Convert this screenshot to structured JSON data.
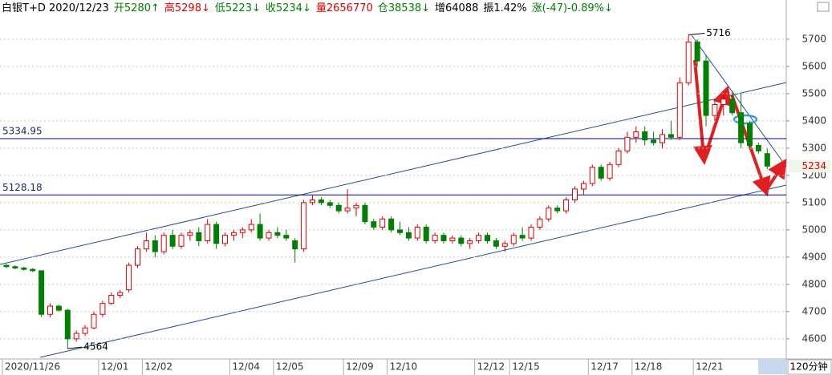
{
  "header": {
    "items": [
      {
        "text": "白银T+D 2020/12/23",
        "color": "#000000"
      },
      {
        "text": "开5280↑",
        "color": "#008000"
      },
      {
        "text": "高5298↓",
        "color": "#e00000"
      },
      {
        "text": "低5223↓",
        "color": "#008000"
      },
      {
        "text": "收5234↓",
        "color": "#008000"
      },
      {
        "text": "量2656770",
        "color": "#e00000"
      },
      {
        "text": "仓38538↓",
        "color": "#008000"
      },
      {
        "text": "增64088",
        "color": "#000000"
      },
      {
        "text": "振1.42%",
        "color": "#000000"
      },
      {
        "text": "涨(-47)-0.89%↓",
        "color": "#008000"
      }
    ]
  },
  "chart_data": {
    "type": "candlestick",
    "period": "120分钟",
    "up_color": "#e00000",
    "down_color": "#008000",
    "ylim": [
      4526,
      5791
    ],
    "yticks": [
      4600,
      4700,
      4800,
      4900,
      5000,
      5100,
      5200,
      5300,
      5400,
      5500,
      5600,
      5700
    ],
    "grid": true,
    "xticks": [
      {
        "value": 0,
        "label": "2020/11/26"
      },
      {
        "value": 11,
        "label": "12/01"
      },
      {
        "value": 16,
        "label": "12/02"
      },
      {
        "value": 26,
        "label": "12/04"
      },
      {
        "value": 31,
        "label": "12/05"
      },
      {
        "value": 39,
        "label": "12/09"
      },
      {
        "value": 44,
        "label": "12/10"
      },
      {
        "value": 54,
        "label": "12/12"
      },
      {
        "value": 58,
        "label": "12/15"
      },
      {
        "value": 67,
        "label": "12/17"
      },
      {
        "value": 72,
        "label": "12/18"
      },
      {
        "value": 79,
        "label": "12/21"
      }
    ],
    "levels": [
      5334.95,
      5128.18
    ],
    "level_color": "#000080",
    "max_index": 78,
    "min_index": 7,
    "candles": [
      {
        "open": 4870,
        "high": 4875,
        "low": 4860,
        "close": 4865
      },
      {
        "open": 4865,
        "high": 4870,
        "low": 4855,
        "close": 4860
      },
      {
        "open": 4860,
        "high": 4865,
        "low": 4850,
        "close": 4855
      },
      {
        "open": 4855,
        "high": 4860,
        "low": 4845,
        "close": 4850
      },
      {
        "open": 4850,
        "high": 4850,
        "low": 4680,
        "close": 4690
      },
      {
        "open": 4690,
        "high": 4730,
        "low": 4680,
        "close": 4720
      },
      {
        "open": 4720,
        "high": 4725,
        "low": 4700,
        "close": 4705
      },
      {
        "open": 4705,
        "high": 4710,
        "low": 4564,
        "close": 4600
      },
      {
        "open": 4600,
        "high": 4630,
        "low": 4590,
        "close": 4620
      },
      {
        "open": 4620,
        "high": 4650,
        "low": 4610,
        "close": 4640
      },
      {
        "open": 4640,
        "high": 4700,
        "low": 4635,
        "close": 4690
      },
      {
        "open": 4690,
        "high": 4740,
        "low": 4680,
        "close": 4730
      },
      {
        "open": 4730,
        "high": 4770,
        "low": 4725,
        "close": 4760
      },
      {
        "open": 4760,
        "high": 4780,
        "low": 4750,
        "close": 4770
      },
      {
        "open": 4780,
        "high": 4880,
        "low": 4770,
        "close": 4870
      },
      {
        "open": 4870,
        "high": 4940,
        "low": 4860,
        "close": 4930
      },
      {
        "open": 4930,
        "high": 4990,
        "low": 4920,
        "close": 4960
      },
      {
        "open": 4960,
        "high": 4980,
        "low": 4900,
        "close": 4920
      },
      {
        "open": 4920,
        "high": 4990,
        "low": 4910,
        "close": 4980
      },
      {
        "open": 4980,
        "high": 5000,
        "low": 4930,
        "close": 4940
      },
      {
        "open": 4940,
        "high": 4990,
        "low": 4930,
        "close": 4980
      },
      {
        "open": 4980,
        "high": 5000,
        "low": 4960,
        "close": 4990
      },
      {
        "open": 4990,
        "high": 5010,
        "low": 4940,
        "close": 4960
      },
      {
        "open": 4960,
        "high": 5040,
        "low": 4950,
        "close": 5020
      },
      {
        "open": 5020,
        "high": 5030,
        "low": 4930,
        "close": 4950
      },
      {
        "open": 4950,
        "high": 4990,
        "low": 4940,
        "close": 4980
      },
      {
        "open": 4980,
        "high": 5000,
        "low": 4960,
        "close": 4990
      },
      {
        "open": 4990,
        "high": 5010,
        "low": 4970,
        "close": 5000
      },
      {
        "open": 5000,
        "high": 5040,
        "low": 4990,
        "close": 5020
      },
      {
        "open": 5020,
        "high": 5060,
        "low": 4960,
        "close": 4970
      },
      {
        "open": 4970,
        "high": 5000,
        "low": 4960,
        "close": 4990
      },
      {
        "open": 4990,
        "high": 5010,
        "low": 4970,
        "close": 4980
      },
      {
        "open": 4980,
        "high": 5000,
        "low": 4960,
        "close": 4970
      },
      {
        "open": 4960,
        "high": 4970,
        "low": 4880,
        "close": 4930
      },
      {
        "open": 4930,
        "high": 5110,
        "low": 4920,
        "close": 5100
      },
      {
        "open": 5100,
        "high": 5130,
        "low": 5090,
        "close": 5110
      },
      {
        "open": 5110,
        "high": 5120,
        "low": 5090,
        "close": 5100
      },
      {
        "open": 5100,
        "high": 5110,
        "low": 5080,
        "close": 5090
      },
      {
        "open": 5090,
        "high": 5100,
        "low": 5060,
        "close": 5070
      },
      {
        "open": 5070,
        "high": 5150,
        "low": 5060,
        "close": 5080
      },
      {
        "open": 5080,
        "high": 5100,
        "low": 5050,
        "close": 5090
      },
      {
        "open": 5090,
        "high": 5100,
        "low": 5020,
        "close": 5030
      },
      {
        "open": 5030,
        "high": 5040,
        "low": 5000,
        "close": 5010
      },
      {
        "open": 5010,
        "high": 5050,
        "low": 5000,
        "close": 5040
      },
      {
        "open": 5040,
        "high": 5050,
        "low": 4990,
        "close": 5000
      },
      {
        "open": 5000,
        "high": 5030,
        "low": 4980,
        "close": 4990
      },
      {
        "open": 4990,
        "high": 5010,
        "low": 4960,
        "close": 4970
      },
      {
        "open": 4970,
        "high": 5020,
        "low": 4960,
        "close": 5010
      },
      {
        "open": 5010,
        "high": 5020,
        "low": 4950,
        "close": 4960
      },
      {
        "open": 4960,
        "high": 4990,
        "low": 4950,
        "close": 4980
      },
      {
        "open": 4980,
        "high": 4990,
        "low": 4950,
        "close": 4960
      },
      {
        "open": 4960,
        "high": 4980,
        "low": 4950,
        "close": 4970
      },
      {
        "open": 4970,
        "high": 4980,
        "low": 4940,
        "close": 4950
      },
      {
        "open": 4950,
        "high": 4970,
        "low": 4930,
        "close": 4960
      },
      {
        "open": 4960,
        "high": 4990,
        "low": 4950,
        "close": 4980
      },
      {
        "open": 4980,
        "high": 4990,
        "low": 4950,
        "close": 4960
      },
      {
        "open": 4960,
        "high": 4970,
        "low": 4930,
        "close": 4940
      },
      {
        "open": 4940,
        "high": 4960,
        "low": 4920,
        "close": 4950
      },
      {
        "open": 4950,
        "high": 4990,
        "low": 4940,
        "close": 4980
      },
      {
        "open": 4980,
        "high": 5010,
        "low": 4960,
        "close": 4970
      },
      {
        "open": 4970,
        "high": 5020,
        "low": 4960,
        "close": 5010
      },
      {
        "open": 5010,
        "high": 5050,
        "low": 5000,
        "close": 5040
      },
      {
        "open": 5040,
        "high": 5090,
        "low": 5030,
        "close": 5080
      },
      {
        "open": 5080,
        "high": 5090,
        "low": 5060,
        "close": 5070
      },
      {
        "open": 5070,
        "high": 5120,
        "low": 5060,
        "close": 5110
      },
      {
        "open": 5110,
        "high": 5160,
        "low": 5100,
        "close": 5150
      },
      {
        "open": 5150,
        "high": 5180,
        "low": 5130,
        "close": 5170
      },
      {
        "open": 5170,
        "high": 5240,
        "low": 5160,
        "close": 5230
      },
      {
        "open": 5230,
        "high": 5240,
        "low": 5180,
        "close": 5190
      },
      {
        "open": 5190,
        "high": 5250,
        "low": 5180,
        "close": 5240
      },
      {
        "open": 5240,
        "high": 5300,
        "low": 5230,
        "close": 5290
      },
      {
        "open": 5290,
        "high": 5360,
        "low": 5280,
        "close": 5340
      },
      {
        "open": 5340,
        "high": 5380,
        "low": 5320,
        "close": 5360
      },
      {
        "open": 5360,
        "high": 5380,
        "low": 5310,
        "close": 5330
      },
      {
        "open": 5330,
        "high": 5360,
        "low": 5310,
        "close": 5320
      },
      {
        "open": 5320,
        "high": 5370,
        "low": 5300,
        "close": 5350
      },
      {
        "open": 5350,
        "high": 5400,
        "low": 5330,
        "close": 5340
      },
      {
        "open": 5340,
        "high": 5560,
        "low": 5330,
        "close": 5540
      },
      {
        "open": 5540,
        "high": 5716,
        "low": 5530,
        "close": 5690
      },
      {
        "open": 5690,
        "high": 5700,
        "low": 5600,
        "close": 5620
      },
      {
        "open": 5620,
        "high": 5640,
        "low": 5380,
        "close": 5420
      },
      {
        "open": 5420,
        "high": 5480,
        "low": 5400,
        "close": 5460
      },
      {
        "open": 5460,
        "high": 5500,
        "low": 5420,
        "close": 5480
      },
      {
        "open": 5480,
        "high": 5510,
        "low": 5420,
        "close": 5430
      },
      {
        "open": 5430,
        "high": 5500,
        "low": 5300,
        "close": 5320
      },
      {
        "open": 5390,
        "high": 5400,
        "low": 5300,
        "close": 5310
      },
      {
        "open": 5310,
        "high": 5320,
        "low": 5280,
        "close": 5290
      },
      {
        "open": 5280,
        "high": 5298,
        "low": 5223,
        "close": 5234
      }
    ]
  }
}
